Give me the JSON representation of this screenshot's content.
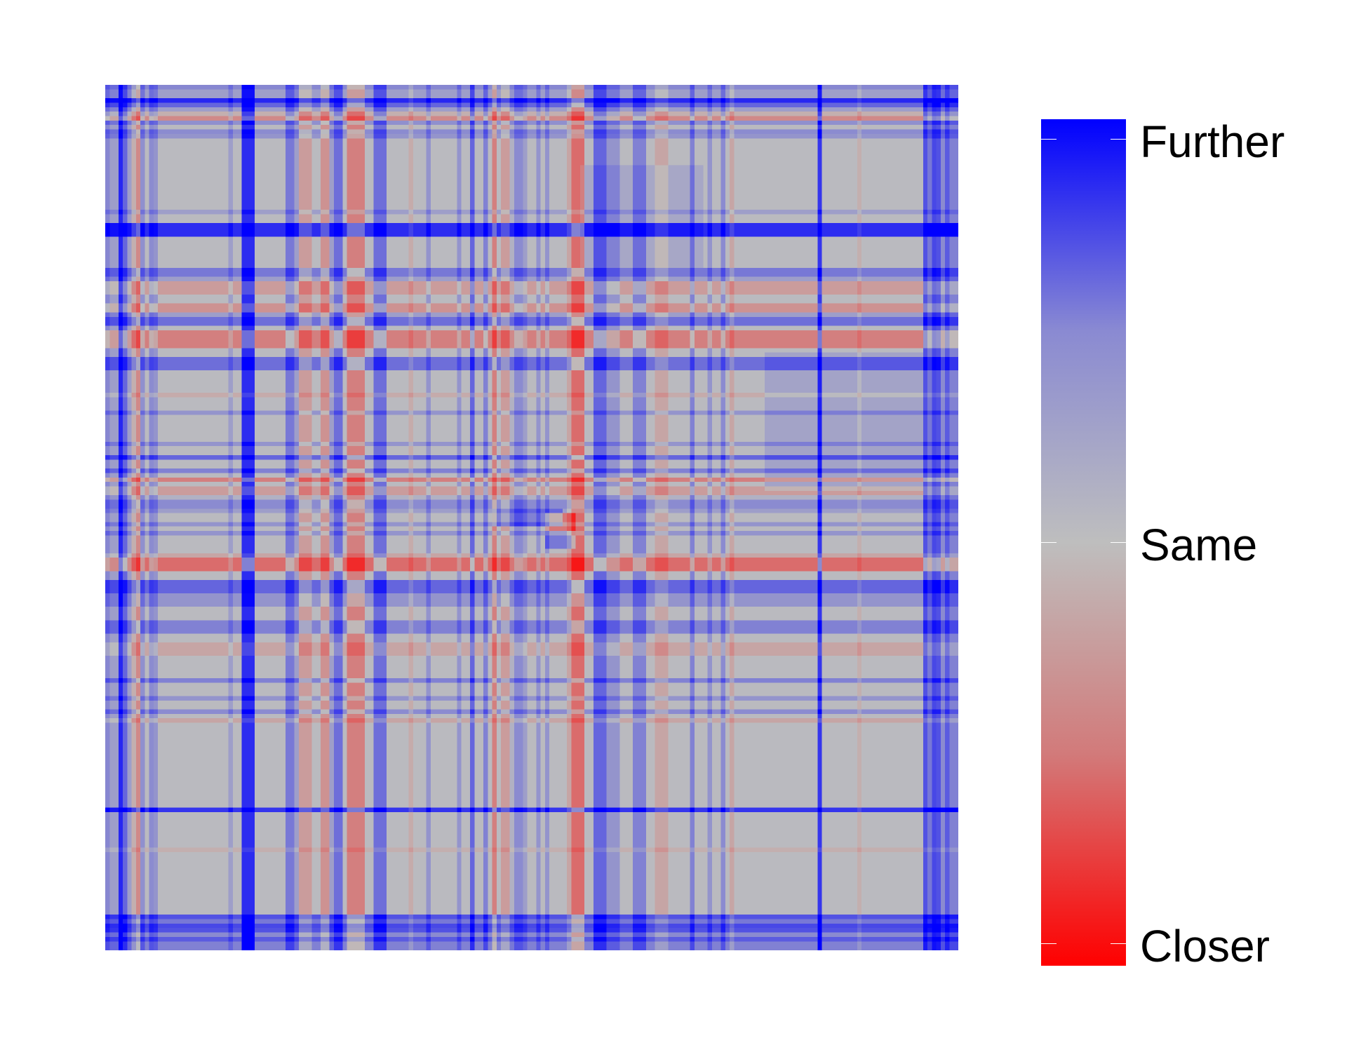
{
  "chart_data": {
    "type": "heatmap",
    "title": "",
    "xlabel": "",
    "ylabel": "",
    "grid": false,
    "legend": "right",
    "size": [
      194,
      194
    ],
    "colorscale": {
      "low": {
        "value": -1,
        "color": "#ff0000",
        "label": "Closer"
      },
      "mid": {
        "value": 0,
        "color": "#bebebe",
        "label": "Same"
      },
      "high": {
        "value": 1,
        "color": "#0000ff",
        "label": "Further"
      }
    },
    "base_value": 0.02,
    "line_profile": [
      {
        "index": 0,
        "value": 0.12
      },
      {
        "index": 3,
        "value": 0.18
      },
      {
        "index": 6,
        "value": 0.2
      },
      {
        "index": 8,
        "value": 0.22
      },
      {
        "index": 10,
        "value": 0.25
      },
      {
        "index": 11,
        "value": 0.2
      },
      {
        "index": 28,
        "value": 0.15
      },
      {
        "index": 69,
        "value": -0.12
      },
      {
        "index": 73,
        "value": 0.2
      },
      {
        "index": 80,
        "value": 0.2
      },
      {
        "index": 83,
        "value": 0.45
      },
      {
        "index": 86,
        "value": 0.3
      },
      {
        "index": 88,
        "value": -0.35
      },
      {
        "index": 95,
        "value": 0.15
      },
      {
        "index": 98,
        "value": 0.2
      },
      {
        "index": 100,
        "value": 0.2
      },
      {
        "index": 105,
        "value": -0.15
      },
      {
        "index": 133,
        "value": 0.3
      },
      {
        "index": 137,
        "value": 0.2
      },
      {
        "index": 140,
        "value": 0.25
      },
      {
        "index": 142,
        "value": -0.15
      },
      {
        "index": 162,
        "value": 0.7
      },
      {
        "index": 171,
        "value": -0.1
      },
      {
        "index": 186,
        "value": 0.2
      },
      {
        "index": 189,
        "value": 0.3
      },
      {
        "index": 191,
        "value": 0.2
      }
    ],
    "blocks": [
      {
        "rows": [
          0,
          3
        ],
        "cols": [
          0,
          193
        ],
        "value": 0.15
      },
      {
        "rows": [
          3,
          5
        ],
        "cols": [
          0,
          193
        ],
        "value": 0.45
      },
      {
        "rows": [
          5,
          7
        ],
        "cols": [
          0,
          193
        ],
        "value": -0.3
      },
      {
        "rows": [
          31,
          33
        ],
        "cols": [
          0,
          193
        ],
        "value": 0.75
      },
      {
        "rows": [
          41,
          43
        ],
        "cols": [
          0,
          193
        ],
        "value": 0.35
      },
      {
        "rows": [
          43,
          46
        ],
        "cols": [
          0,
          193
        ],
        "value": -0.2
      },
      {
        "rows": [
          49,
          51
        ],
        "cols": [
          0,
          193
        ],
        "value": -0.25
      },
      {
        "rows": [
          51,
          53
        ],
        "cols": [
          0,
          193
        ],
        "value": 0.4
      },
      {
        "rows": [
          55,
          58
        ],
        "cols": [
          0,
          193
        ],
        "value": -0.35
      },
      {
        "rows": [
          61,
          63
        ],
        "cols": [
          0,
          193
        ],
        "value": 0.4
      },
      {
        "rows": [
          18,
          40
        ],
        "cols": [
          108,
          135
        ],
        "value": 0.1
      },
      {
        "rows": [
          60,
          90
        ],
        "cols": [
          150,
          185
        ],
        "value": 0.12
      },
      {
        "rows": [
          90,
          92
        ],
        "cols": [
          0,
          193
        ],
        "value": -0.2
      },
      {
        "rows": [
          92,
          94
        ],
        "cols": [
          0,
          193
        ],
        "value": 0.25
      },
      {
        "rows": [
          95,
          98
        ],
        "cols": [
          88,
          103
        ],
        "value": 0.3
      },
      {
        "rows": [
          96,
          100
        ],
        "cols": [
          100,
          106
        ],
        "value": -0.4
      },
      {
        "rows": [
          100,
          103
        ],
        "cols": [
          100,
          106
        ],
        "value": 0.35
      },
      {
        "rows": [
          106,
          108
        ],
        "cols": [
          0,
          193
        ],
        "value": -0.45
      },
      {
        "rows": [
          111,
          113
        ],
        "cols": [
          0,
          193
        ],
        "value": 0.45
      },
      {
        "rows": [
          114,
          116
        ],
        "cols": [
          0,
          193
        ],
        "value": 0.2
      },
      {
        "rows": [
          120,
          122
        ],
        "cols": [
          0,
          193
        ],
        "value": 0.3
      },
      {
        "rows": [
          125,
          127
        ],
        "cols": [
          0,
          193
        ],
        "value": -0.15
      },
      {
        "rows": [
          186,
          188
        ],
        "cols": [
          0,
          193
        ],
        "value": 0.35
      },
      {
        "rows": [
          188,
          190
        ],
        "cols": [
          0,
          193
        ],
        "value": 0.25
      },
      {
        "rows": [
          191,
          193
        ],
        "cols": [
          0,
          193
        ],
        "value": 0.3
      }
    ]
  },
  "colorbar": {
    "gradient": [
      "#0000ff",
      "#8a8ad2",
      "#bebebe",
      "#d27a7a",
      "#ff0000"
    ],
    "labels": {
      "further": "Further",
      "same": "Same",
      "closer": "Closer"
    }
  }
}
